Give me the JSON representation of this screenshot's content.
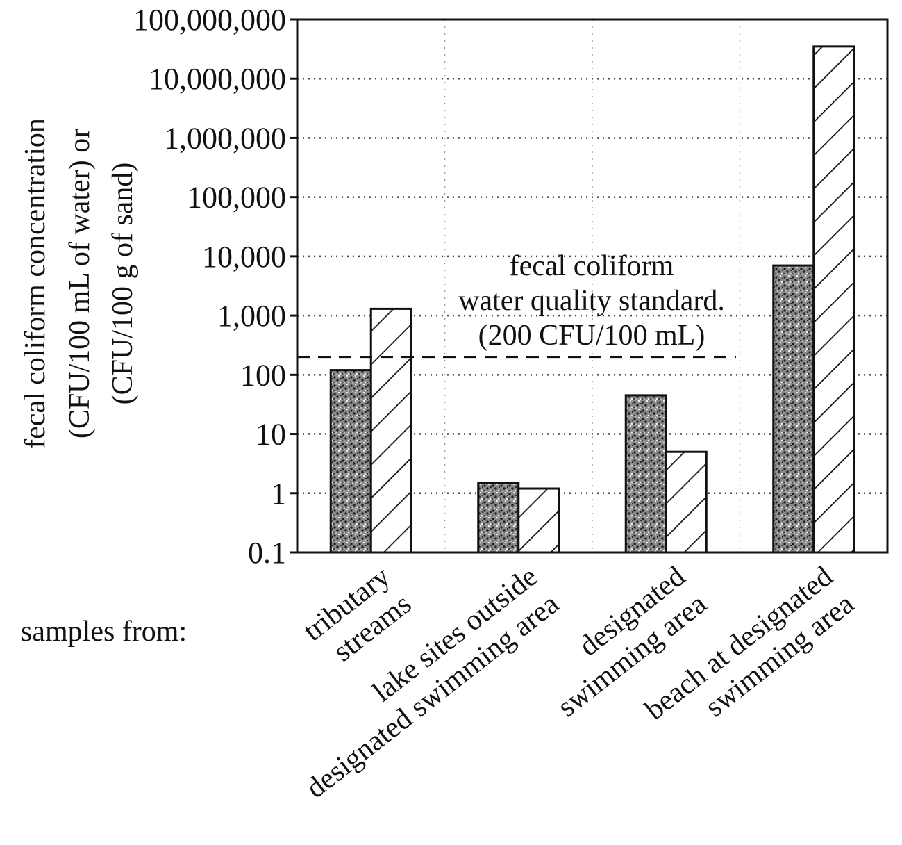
{
  "chart_data": {
    "type": "bar",
    "scale": "log",
    "ylim": [
      0.1,
      100000000
    ],
    "grid": "horizontal dotted",
    "ylabel_line1": "fecal coliform concentration",
    "ylabel_line2": "(CFU/100 mL of water) or",
    "ylabel_line3": "(CFU/100 g of sand)",
    "yticks": [
      {
        "value": 0.1,
        "label": "0.1"
      },
      {
        "value": 1,
        "label": "1"
      },
      {
        "value": 10,
        "label": "10"
      },
      {
        "value": 100,
        "label": "100"
      },
      {
        "value": 1000,
        "label": "1,000"
      },
      {
        "value": 10000,
        "label": "10,000"
      },
      {
        "value": 100000,
        "label": "100,000"
      },
      {
        "value": 1000000,
        "label": "1,000,000"
      },
      {
        "value": 10000000,
        "label": "10,000,000"
      },
      {
        "value": 100000000,
        "label": "100,000,000"
      }
    ],
    "x_prefix": "samples from:",
    "categories": [
      {
        "line1": "tributary",
        "line2": "streams"
      },
      {
        "line1": "lake sites outside",
        "line2": "designated swimming area"
      },
      {
        "line1": "designated",
        "line2": "swimming area"
      },
      {
        "line1": "beach at designated",
        "line2": "swimming area"
      }
    ],
    "series": [
      {
        "pattern": "stippled",
        "values": [
          120,
          1.5,
          45,
          7000
        ]
      },
      {
        "pattern": "diagonal-hatch",
        "values": [
          1300,
          1.2,
          5,
          35000000
        ]
      }
    ],
    "reference_line": {
      "value": 200,
      "style": "dashed",
      "label_line1": "fecal coliform",
      "label_line2": "water quality standard.",
      "label_line3": "(200 CFU/100 mL)"
    }
  }
}
